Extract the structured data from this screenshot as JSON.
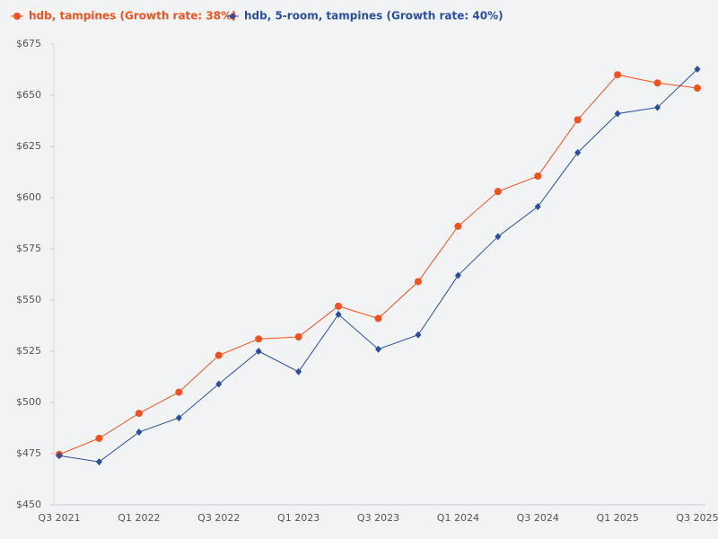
{
  "chart_data": {
    "type": "line",
    "categories": [
      "Q3 2021",
      null,
      "Q1 2022",
      null,
      "Q3 2022",
      null,
      "Q1 2023",
      null,
      "Q3 2023",
      null,
      "Q1 2024",
      null,
      "Q3 2024",
      null,
      "Q1 2025",
      null,
      "Q3 2025"
    ],
    "series": [
      {
        "name": "hdb, tampines (Growth rate: 38%)",
        "color": "#f4511e",
        "marker": "circle",
        "values": [
          474.6,
          482.5,
          494.7,
          505,
          523,
          531,
          532,
          547,
          541,
          559,
          586,
          603,
          610.5,
          638,
          660,
          656,
          653.5
        ]
      },
      {
        "name": "hdb, 5-room, tampines (Growth rate: 40%)",
        "color": "#2a4f9c",
        "marker": "diamond",
        "values": [
          474,
          471,
          485.5,
          492.5,
          509,
          525,
          515,
          543,
          526,
          533,
          562,
          581,
          595.6,
          622,
          641,
          644,
          662.7
        ]
      }
    ],
    "ylim": [
      450,
      675
    ],
    "yticks": [
      {
        "value": 450,
        "label": "$450"
      },
      {
        "value": 475,
        "label": "$475"
      },
      {
        "value": 500,
        "label": "$500"
      },
      {
        "value": 525,
        "label": "$525"
      },
      {
        "value": 550,
        "label": "$550"
      },
      {
        "value": 575,
        "label": "$575"
      },
      {
        "value": 600,
        "label": "$600"
      },
      {
        "value": 625,
        "label": "$625"
      },
      {
        "value": 650,
        "label": "$650"
      },
      {
        "value": 675,
        "label": "$675"
      }
    ],
    "legend": "top-left"
  }
}
